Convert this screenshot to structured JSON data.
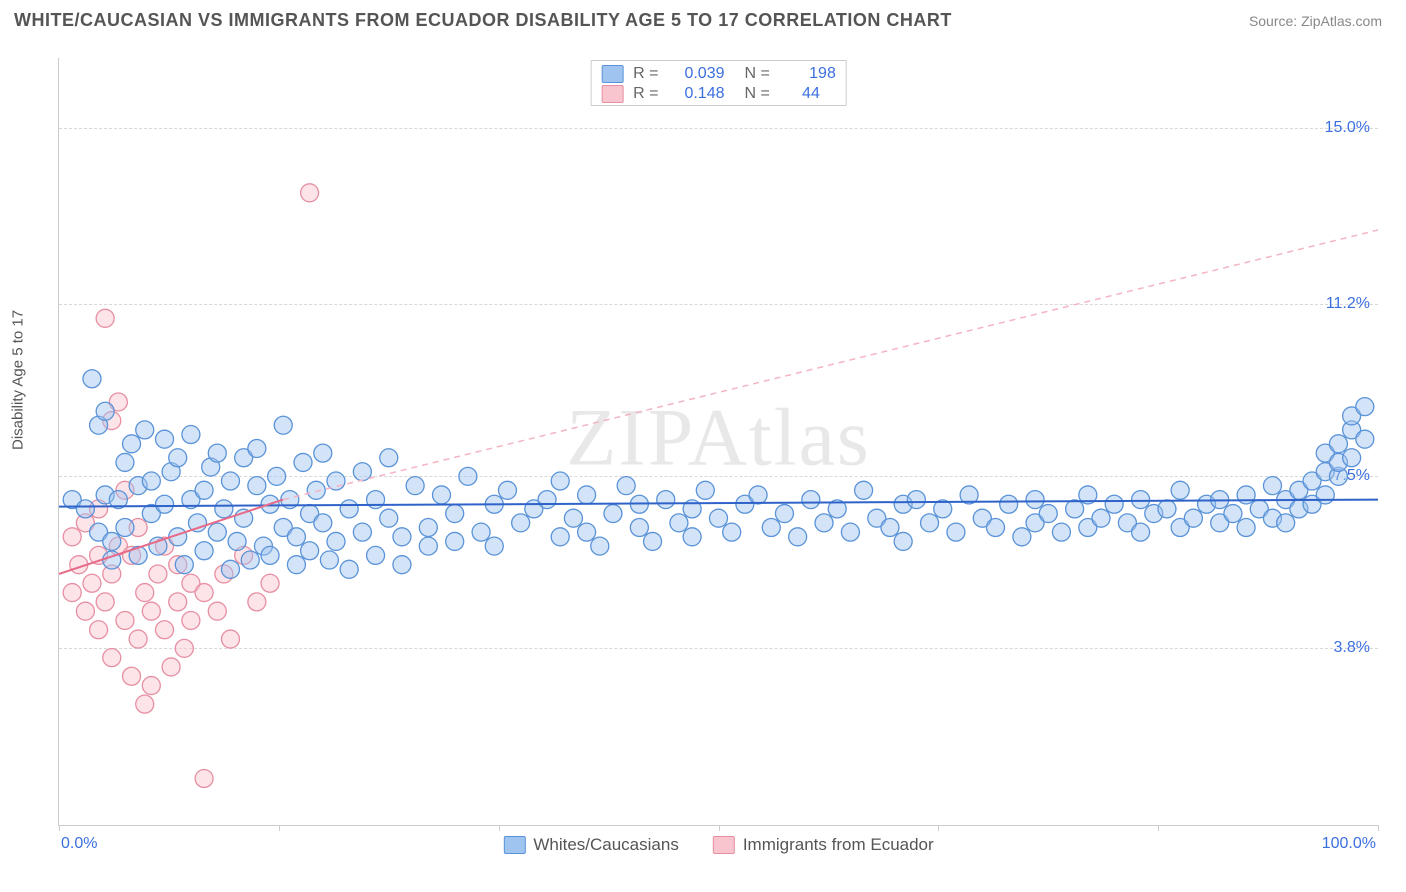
{
  "header": {
    "title": "WHITE/CAUCASIAN VS IMMIGRANTS FROM ECUADOR DISABILITY AGE 5 TO 17 CORRELATION CHART",
    "source": "Source: ZipAtlas.com"
  },
  "chart": {
    "type": "scatter",
    "watermark": "ZIPAtlas",
    "y_axis_title": "Disability Age 5 to 17",
    "xlim": [
      0,
      100
    ],
    "ylim": [
      0,
      16.5
    ],
    "x_ticks": [
      0,
      16.67,
      33.33,
      50,
      66.67,
      83.33,
      100
    ],
    "x_tick_labels": {
      "0": "0.0%",
      "100": "100.0%"
    },
    "y_grid": [
      3.8,
      7.5,
      11.2,
      15.0
    ],
    "y_tick_labels": [
      "3.8%",
      "7.5%",
      "11.2%",
      "15.0%"
    ],
    "background_color": "#ffffff",
    "grid_color": "#d8d8d8",
    "axis_color": "#cccccc",
    "marker_radius": 9,
    "marker_fill_opacity": 0.45,
    "marker_stroke_width": 1.3,
    "series": {
      "blue": {
        "label": "Whites/Caucasians",
        "fill": "#9fc4ef",
        "stroke": "#5a93d8",
        "R": "0.039",
        "N": "198",
        "trend_solid": {
          "x1": 0,
          "y1": 6.85,
          "x2": 100,
          "y2": 7.0,
          "color": "#2f63c9",
          "width": 2
        },
        "points": [
          [
            1,
            7.0
          ],
          [
            2,
            6.8
          ],
          [
            2.5,
            9.6
          ],
          [
            3,
            8.6
          ],
          [
            3,
            6.3
          ],
          [
            3.5,
            8.9
          ],
          [
            3.5,
            7.1
          ],
          [
            4,
            5.7
          ],
          [
            4,
            6.1
          ],
          [
            4.5,
            7.0
          ],
          [
            5,
            6.4
          ],
          [
            5,
            7.8
          ],
          [
            5.5,
            8.2
          ],
          [
            6,
            7.3
          ],
          [
            6,
            5.8
          ],
          [
            6.5,
            8.5
          ],
          [
            7,
            6.7
          ],
          [
            7,
            7.4
          ],
          [
            7.5,
            6.0
          ],
          [
            8,
            6.9
          ],
          [
            8,
            8.3
          ],
          [
            8.5,
            7.6
          ],
          [
            9,
            7.9
          ],
          [
            9,
            6.2
          ],
          [
            9.5,
            5.6
          ],
          [
            10,
            7.0
          ],
          [
            10,
            8.4
          ],
          [
            10.5,
            6.5
          ],
          [
            11,
            7.2
          ],
          [
            11,
            5.9
          ],
          [
            11.5,
            7.7
          ],
          [
            12,
            6.3
          ],
          [
            12,
            8.0
          ],
          [
            12.5,
            6.8
          ],
          [
            13,
            5.5
          ],
          [
            13,
            7.4
          ],
          [
            13.5,
            6.1
          ],
          [
            14,
            7.9
          ],
          [
            14,
            6.6
          ],
          [
            14.5,
            5.7
          ],
          [
            15,
            7.3
          ],
          [
            15,
            8.1
          ],
          [
            15.5,
            6.0
          ],
          [
            16,
            6.9
          ],
          [
            16,
            5.8
          ],
          [
            16.5,
            7.5
          ],
          [
            17,
            6.4
          ],
          [
            17,
            8.6
          ],
          [
            17.5,
            7.0
          ],
          [
            18,
            6.2
          ],
          [
            18,
            5.6
          ],
          [
            18.5,
            7.8
          ],
          [
            19,
            6.7
          ],
          [
            19,
            5.9
          ],
          [
            19.5,
            7.2
          ],
          [
            20,
            8.0
          ],
          [
            20,
            6.5
          ],
          [
            20.5,
            5.7
          ],
          [
            21,
            7.4
          ],
          [
            21,
            6.1
          ],
          [
            22,
            6.8
          ],
          [
            22,
            5.5
          ],
          [
            23,
            7.6
          ],
          [
            23,
            6.3
          ],
          [
            24,
            5.8
          ],
          [
            24,
            7.0
          ],
          [
            25,
            6.6
          ],
          [
            25,
            7.9
          ],
          [
            26,
            6.2
          ],
          [
            26,
            5.6
          ],
          [
            27,
            7.3
          ],
          [
            28,
            6.4
          ],
          [
            28,
            6.0
          ],
          [
            29,
            7.1
          ],
          [
            30,
            6.7
          ],
          [
            30,
            6.1
          ],
          [
            31,
            7.5
          ],
          [
            32,
            6.3
          ],
          [
            33,
            6.9
          ],
          [
            33,
            6.0
          ],
          [
            34,
            7.2
          ],
          [
            35,
            6.5
          ],
          [
            36,
            6.8
          ],
          [
            37,
            7.0
          ],
          [
            38,
            6.2
          ],
          [
            38,
            7.4
          ],
          [
            39,
            6.6
          ],
          [
            40,
            6.3
          ],
          [
            40,
            7.1
          ],
          [
            41,
            6.0
          ],
          [
            42,
            6.7
          ],
          [
            43,
            7.3
          ],
          [
            44,
            6.4
          ],
          [
            44,
            6.9
          ],
          [
            45,
            6.1
          ],
          [
            46,
            7.0
          ],
          [
            47,
            6.5
          ],
          [
            48,
            6.8
          ],
          [
            48,
            6.2
          ],
          [
            49,
            7.2
          ],
          [
            50,
            6.6
          ],
          [
            51,
            6.3
          ],
          [
            52,
            6.9
          ],
          [
            53,
            7.1
          ],
          [
            54,
            6.4
          ],
          [
            55,
            6.7
          ],
          [
            56,
            6.2
          ],
          [
            57,
            7.0
          ],
          [
            58,
            6.5
          ],
          [
            59,
            6.8
          ],
          [
            60,
            6.3
          ],
          [
            61,
            7.2
          ],
          [
            62,
            6.6
          ],
          [
            63,
            6.4
          ],
          [
            64,
            6.9
          ],
          [
            64,
            6.1
          ],
          [
            65,
            7.0
          ],
          [
            66,
            6.5
          ],
          [
            67,
            6.8
          ],
          [
            68,
            6.3
          ],
          [
            69,
            7.1
          ],
          [
            70,
            6.6
          ],
          [
            71,
            6.4
          ],
          [
            72,
            6.9
          ],
          [
            73,
            6.2
          ],
          [
            74,
            7.0
          ],
          [
            74,
            6.5
          ],
          [
            75,
            6.7
          ],
          [
            76,
            6.3
          ],
          [
            77,
            6.8
          ],
          [
            78,
            7.1
          ],
          [
            78,
            6.4
          ],
          [
            79,
            6.6
          ],
          [
            80,
            6.9
          ],
          [
            81,
            6.5
          ],
          [
            82,
            7.0
          ],
          [
            82,
            6.3
          ],
          [
            83,
            6.7
          ],
          [
            84,
            6.8
          ],
          [
            85,
            6.4
          ],
          [
            85,
            7.2
          ],
          [
            86,
            6.6
          ],
          [
            87,
            6.9
          ],
          [
            88,
            6.5
          ],
          [
            88,
            7.0
          ],
          [
            89,
            6.7
          ],
          [
            90,
            6.4
          ],
          [
            90,
            7.1
          ],
          [
            91,
            6.8
          ],
          [
            92,
            6.6
          ],
          [
            92,
            7.3
          ],
          [
            93,
            7.0
          ],
          [
            93,
            6.5
          ],
          [
            94,
            7.2
          ],
          [
            94,
            6.8
          ],
          [
            95,
            7.4
          ],
          [
            95,
            6.9
          ],
          [
            96,
            7.6
          ],
          [
            96,
            7.1
          ],
          [
            96,
            8.0
          ],
          [
            97,
            7.5
          ],
          [
            97,
            8.2
          ],
          [
            97,
            7.8
          ],
          [
            98,
            8.5
          ],
          [
            98,
            7.9
          ],
          [
            98,
            8.8
          ],
          [
            99,
            8.3
          ],
          [
            99,
            9.0
          ]
        ]
      },
      "pink": {
        "label": "Immigrants from Ecuador",
        "fill": "#f8c4ce",
        "stroke": "#e78fa2",
        "R": "0.148",
        "N": "44",
        "trend_solid": {
          "x1": 0,
          "y1": 5.4,
          "x2": 17,
          "y2": 7.0,
          "color": "#e76a88",
          "width": 2
        },
        "trend_dashed": {
          "x1": 17,
          "y1": 7.0,
          "x2": 100,
          "y2": 12.8,
          "color": "#f4b4c2",
          "width": 1.5,
          "dash": "6,5"
        },
        "points": [
          [
            1,
            6.2
          ],
          [
            1,
            5.0
          ],
          [
            1.5,
            5.6
          ],
          [
            2,
            6.5
          ],
          [
            2,
            4.6
          ],
          [
            2.5,
            5.2
          ],
          [
            3,
            6.8
          ],
          [
            3,
            4.2
          ],
          [
            3,
            5.8
          ],
          [
            3.5,
            10.9
          ],
          [
            3.5,
            4.8
          ],
          [
            4,
            8.7
          ],
          [
            4,
            5.4
          ],
          [
            4,
            3.6
          ],
          [
            4.5,
            6.0
          ],
          [
            4.5,
            9.1
          ],
          [
            5,
            4.4
          ],
          [
            5,
            7.2
          ],
          [
            5.5,
            3.2
          ],
          [
            5.5,
            5.8
          ],
          [
            6,
            4.0
          ],
          [
            6,
            6.4
          ],
          [
            6.5,
            2.6
          ],
          [
            6.5,
            5.0
          ],
          [
            7,
            4.6
          ],
          [
            7,
            3.0
          ],
          [
            7.5,
            5.4
          ],
          [
            8,
            4.2
          ],
          [
            8,
            6.0
          ],
          [
            8.5,
            3.4
          ],
          [
            9,
            4.8
          ],
          [
            9,
            5.6
          ],
          [
            9.5,
            3.8
          ],
          [
            10,
            5.2
          ],
          [
            10,
            4.4
          ],
          [
            11,
            1.0
          ],
          [
            11,
            5.0
          ],
          [
            12,
            4.6
          ],
          [
            12.5,
            5.4
          ],
          [
            13,
            4.0
          ],
          [
            14,
            5.8
          ],
          [
            15,
            4.8
          ],
          [
            16,
            5.2
          ],
          [
            19,
            13.6
          ]
        ]
      }
    }
  }
}
